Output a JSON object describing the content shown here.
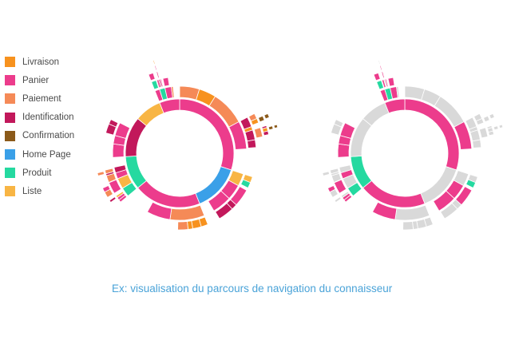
{
  "chart_data": {
    "type": "sunburst",
    "legend": {
      "placement": "left",
      "items": [
        {
          "label": "Livraison",
          "color": "#f7921e"
        },
        {
          "label": "Panier",
          "color": "#ec3c8c"
        },
        {
          "label": "Paiement",
          "color": "#f58a57"
        },
        {
          "label": "Identification",
          "color": "#c2185b"
        },
        {
          "label": "Confirmation",
          "color": "#8b5a1a"
        },
        {
          "label": "Home Page",
          "color": "#3aa0e8"
        },
        {
          "label": "Produit",
          "color": "#25d9a0"
        },
        {
          "label": "Liste",
          "color": "#f8b544"
        }
      ]
    },
    "muted_color": "#d9d9d9",
    "charts": [
      {
        "name": "full",
        "highlight": "all"
      },
      {
        "name": "filtered",
        "highlight": [
          "Panier",
          "Produit"
        ]
      }
    ]
  },
  "caption": "Ex: visualisation du parcours de navigation du connaisseur"
}
